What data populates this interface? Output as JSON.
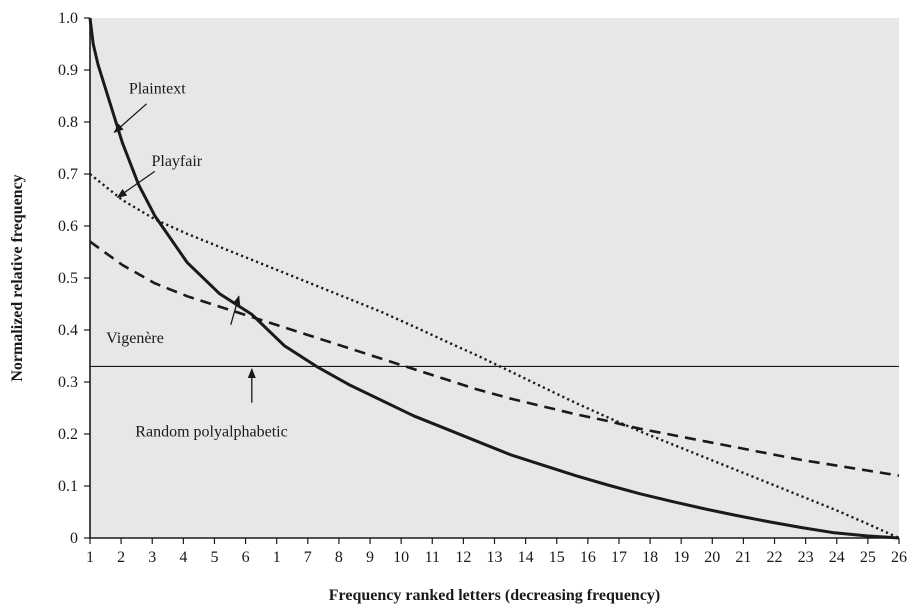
{
  "chart_data": {
    "type": "line",
    "xlabel": "Frequency ranked letters (decreasing frequency)",
    "ylabel": "Normalized relative frequency",
    "x_tick_labels": [
      "1",
      "2",
      "3",
      "4",
      "5",
      "6",
      "1",
      "7",
      "8",
      "9",
      "10",
      "11",
      "12",
      "13",
      "14",
      "15",
      "16",
      "17",
      "18",
      "19",
      "20",
      "21",
      "22",
      "23",
      "24",
      "25",
      "26"
    ],
    "y_tick_labels": [
      "0",
      "0.1",
      "0.2",
      "0.3",
      "0.4",
      "0.5",
      "0.6",
      "0.7",
      "0.8",
      "0.9",
      "1.0"
    ],
    "xlim": [
      1,
      26
    ],
    "ylim": [
      0,
      1.0
    ],
    "grid": false,
    "plot_background": "#e6e7e9",
    "series_color": "#1a1a1a",
    "series": [
      {
        "name": "Plaintext",
        "style": "solid",
        "x": [
          1,
          1.1,
          1.25,
          1.5,
          2,
          2.5,
          3,
          4,
          5,
          6,
          7,
          8,
          9,
          10,
          11,
          12,
          13,
          14,
          15,
          16,
          17,
          18,
          19,
          20,
          21,
          22,
          23,
          24,
          25,
          26
        ],
        "y": [
          1.0,
          0.95,
          0.91,
          0.86,
          0.76,
          0.68,
          0.62,
          0.53,
          0.47,
          0.43,
          0.37,
          0.33,
          0.295,
          0.265,
          0.235,
          0.21,
          0.185,
          0.16,
          0.14,
          0.12,
          0.102,
          0.085,
          0.07,
          0.056,
          0.043,
          0.031,
          0.02,
          0.01,
          0.004,
          0.0
        ]
      },
      {
        "name": "Playfair",
        "style": "dotted",
        "x": [
          1,
          2,
          3,
          4,
          5,
          6,
          7,
          8,
          9,
          10,
          11,
          12,
          13,
          14,
          15,
          16,
          17,
          18,
          19,
          20,
          21,
          22,
          23,
          24,
          25,
          26
        ],
        "y": [
          0.7,
          0.65,
          0.613,
          0.585,
          0.56,
          0.535,
          0.51,
          0.485,
          0.46,
          0.435,
          0.407,
          0.378,
          0.35,
          0.32,
          0.29,
          0.26,
          0.232,
          0.205,
          0.18,
          0.155,
          0.13,
          0.105,
          0.08,
          0.055,
          0.028,
          0.0
        ]
      },
      {
        "name": "Vigenère",
        "style": "dashed",
        "x": [
          1,
          2,
          3,
          4,
          5,
          6,
          7,
          8,
          9,
          10,
          11,
          12,
          13,
          14,
          15,
          16,
          17,
          18,
          19,
          20,
          21,
          22,
          23,
          24,
          25,
          26
        ],
        "y": [
          0.57,
          0.525,
          0.49,
          0.465,
          0.445,
          0.425,
          0.405,
          0.385,
          0.365,
          0.345,
          0.325,
          0.305,
          0.285,
          0.268,
          0.253,
          0.238,
          0.225,
          0.21,
          0.198,
          0.186,
          0.174,
          0.162,
          0.15,
          0.14,
          0.13,
          0.12
        ]
      },
      {
        "name": "Random polyalphabetic",
        "style": "thin",
        "x": [
          1,
          26
        ],
        "y": [
          0.33,
          0.33
        ]
      }
    ],
    "annotations": [
      {
        "text": "Plaintext",
        "text_at": [
          2.2,
          0.855
        ],
        "arrow_from": [
          2.75,
          0.835
        ],
        "arrow_to": [
          1.75,
          0.78
        ]
      },
      {
        "text": "Playfair",
        "text_at": [
          2.9,
          0.715
        ],
        "arrow_from": [
          3.0,
          0.705
        ],
        "arrow_to": [
          1.85,
          0.655
        ]
      },
      {
        "text": "Vigenère",
        "text_at": [
          1.5,
          0.375
        ],
        "arrow_from": [
          5.35,
          0.41
        ],
        "arrow_to": [
          5.6,
          0.465
        ]
      },
      {
        "text": "Random polyalphabetic",
        "text_at": [
          2.4,
          0.195
        ],
        "arrow_from": [
          6.0,
          0.26
        ],
        "arrow_to": [
          6.0,
          0.325
        ]
      }
    ]
  }
}
